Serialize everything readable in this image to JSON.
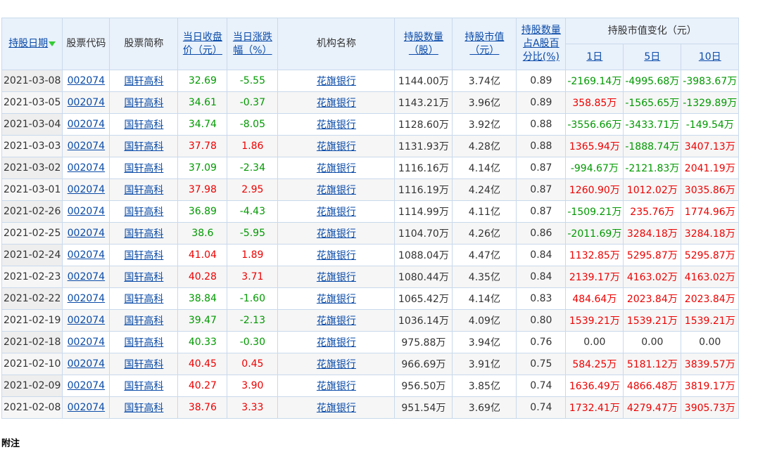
{
  "table": {
    "header": [
      "持股日期",
      "股票代码",
      "股票简称",
      "当日收盘价（元）",
      "当日涨跌幅（%）",
      "机构名称",
      "持股数量（股）",
      "持股市值（元）",
      "持股数量占A股百分比(%)",
      "持股市值变化（元）"
    ],
    "subheader": [
      "1日",
      "5日",
      "10日"
    ],
    "rows": [
      [
        "2021-03-08",
        "002074",
        "国轩高科",
        "32.69",
        "-5.55",
        "花旗银行",
        "1144.00万",
        "3.74亿",
        "0.89",
        "-2169.14万",
        "-4995.68万",
        "-3983.67万"
      ],
      [
        "2021-03-05",
        "002074",
        "国轩高科",
        "34.61",
        "-0.37",
        "花旗银行",
        "1143.21万",
        "3.96亿",
        "0.89",
        "358.85万",
        "-1565.65万",
        "-1329.89万"
      ],
      [
        "2021-03-04",
        "002074",
        "国轩高科",
        "34.74",
        "-8.05",
        "花旗银行",
        "1128.60万",
        "3.92亿",
        "0.88",
        "-3556.66万",
        "-3433.71万",
        "-149.54万"
      ],
      [
        "2021-03-03",
        "002074",
        "国轩高科",
        "37.78",
        "1.86",
        "花旗银行",
        "1131.93万",
        "4.28亿",
        "0.88",
        "1365.94万",
        "-1888.74万",
        "3407.13万"
      ],
      [
        "2021-03-02",
        "002074",
        "国轩高科",
        "37.09",
        "-2.34",
        "花旗银行",
        "1116.16万",
        "4.14亿",
        "0.87",
        "-994.67万",
        "-2121.83万",
        "2041.19万"
      ],
      [
        "2021-03-01",
        "002074",
        "国轩高科",
        "37.98",
        "2.95",
        "花旗银行",
        "1116.19万",
        "4.24亿",
        "0.87",
        "1260.90万",
        "1012.02万",
        "3035.86万"
      ],
      [
        "2021-02-26",
        "002074",
        "国轩高科",
        "36.89",
        "-4.43",
        "花旗银行",
        "1114.99万",
        "4.11亿",
        "0.87",
        "-1509.21万",
        "235.76万",
        "1774.96万"
      ],
      [
        "2021-02-25",
        "002074",
        "国轩高科",
        "38.6",
        "-5.95",
        "花旗银行",
        "1104.70万",
        "4.26亿",
        "0.86",
        "-2011.69万",
        "3284.18万",
        "3284.18万"
      ],
      [
        "2021-02-24",
        "002074",
        "国轩高科",
        "41.04",
        "1.89",
        "花旗银行",
        "1088.04万",
        "4.47亿",
        "0.84",
        "1132.85万",
        "5295.87万",
        "5295.87万"
      ],
      [
        "2021-02-23",
        "002074",
        "国轩高科",
        "40.28",
        "3.71",
        "花旗银行",
        "1080.44万",
        "4.35亿",
        "0.84",
        "2139.17万",
        "4163.02万",
        "4163.02万"
      ],
      [
        "2021-02-22",
        "002074",
        "国轩高科",
        "38.84",
        "-1.60",
        "花旗银行",
        "1065.42万",
        "4.14亿",
        "0.83",
        "484.64万",
        "2023.84万",
        "2023.84万"
      ],
      [
        "2021-02-19",
        "002074",
        "国轩高科",
        "39.47",
        "-2.13",
        "花旗银行",
        "1036.14万",
        "4.09亿",
        "0.80",
        "1539.21万",
        "1539.21万",
        "1539.21万"
      ],
      [
        "2021-02-18",
        "002074",
        "国轩高科",
        "40.33",
        "-0.30",
        "花旗银行",
        "975.88万",
        "3.94亿",
        "0.76",
        "0.00",
        "0.00",
        "0.00"
      ],
      [
        "2021-02-10",
        "002074",
        "国轩高科",
        "40.45",
        "0.45",
        "花旗银行",
        "966.69万",
        "3.91亿",
        "0.75",
        "584.25万",
        "5181.12万",
        "3839.57万"
      ],
      [
        "2021-02-09",
        "002074",
        "国轩高科",
        "40.27",
        "3.90",
        "花旗银行",
        "956.50万",
        "3.85亿",
        "0.74",
        "1636.49万",
        "4866.48万",
        "3819.17万"
      ],
      [
        "2021-02-08",
        "002074",
        "国轩高科",
        "38.76",
        "3.33",
        "花旗银行",
        "951.54万",
        "3.69亿",
        "0.74",
        "1732.41万",
        "4279.47万",
        "3905.73万"
      ]
    ]
  },
  "footer": "附注"
}
